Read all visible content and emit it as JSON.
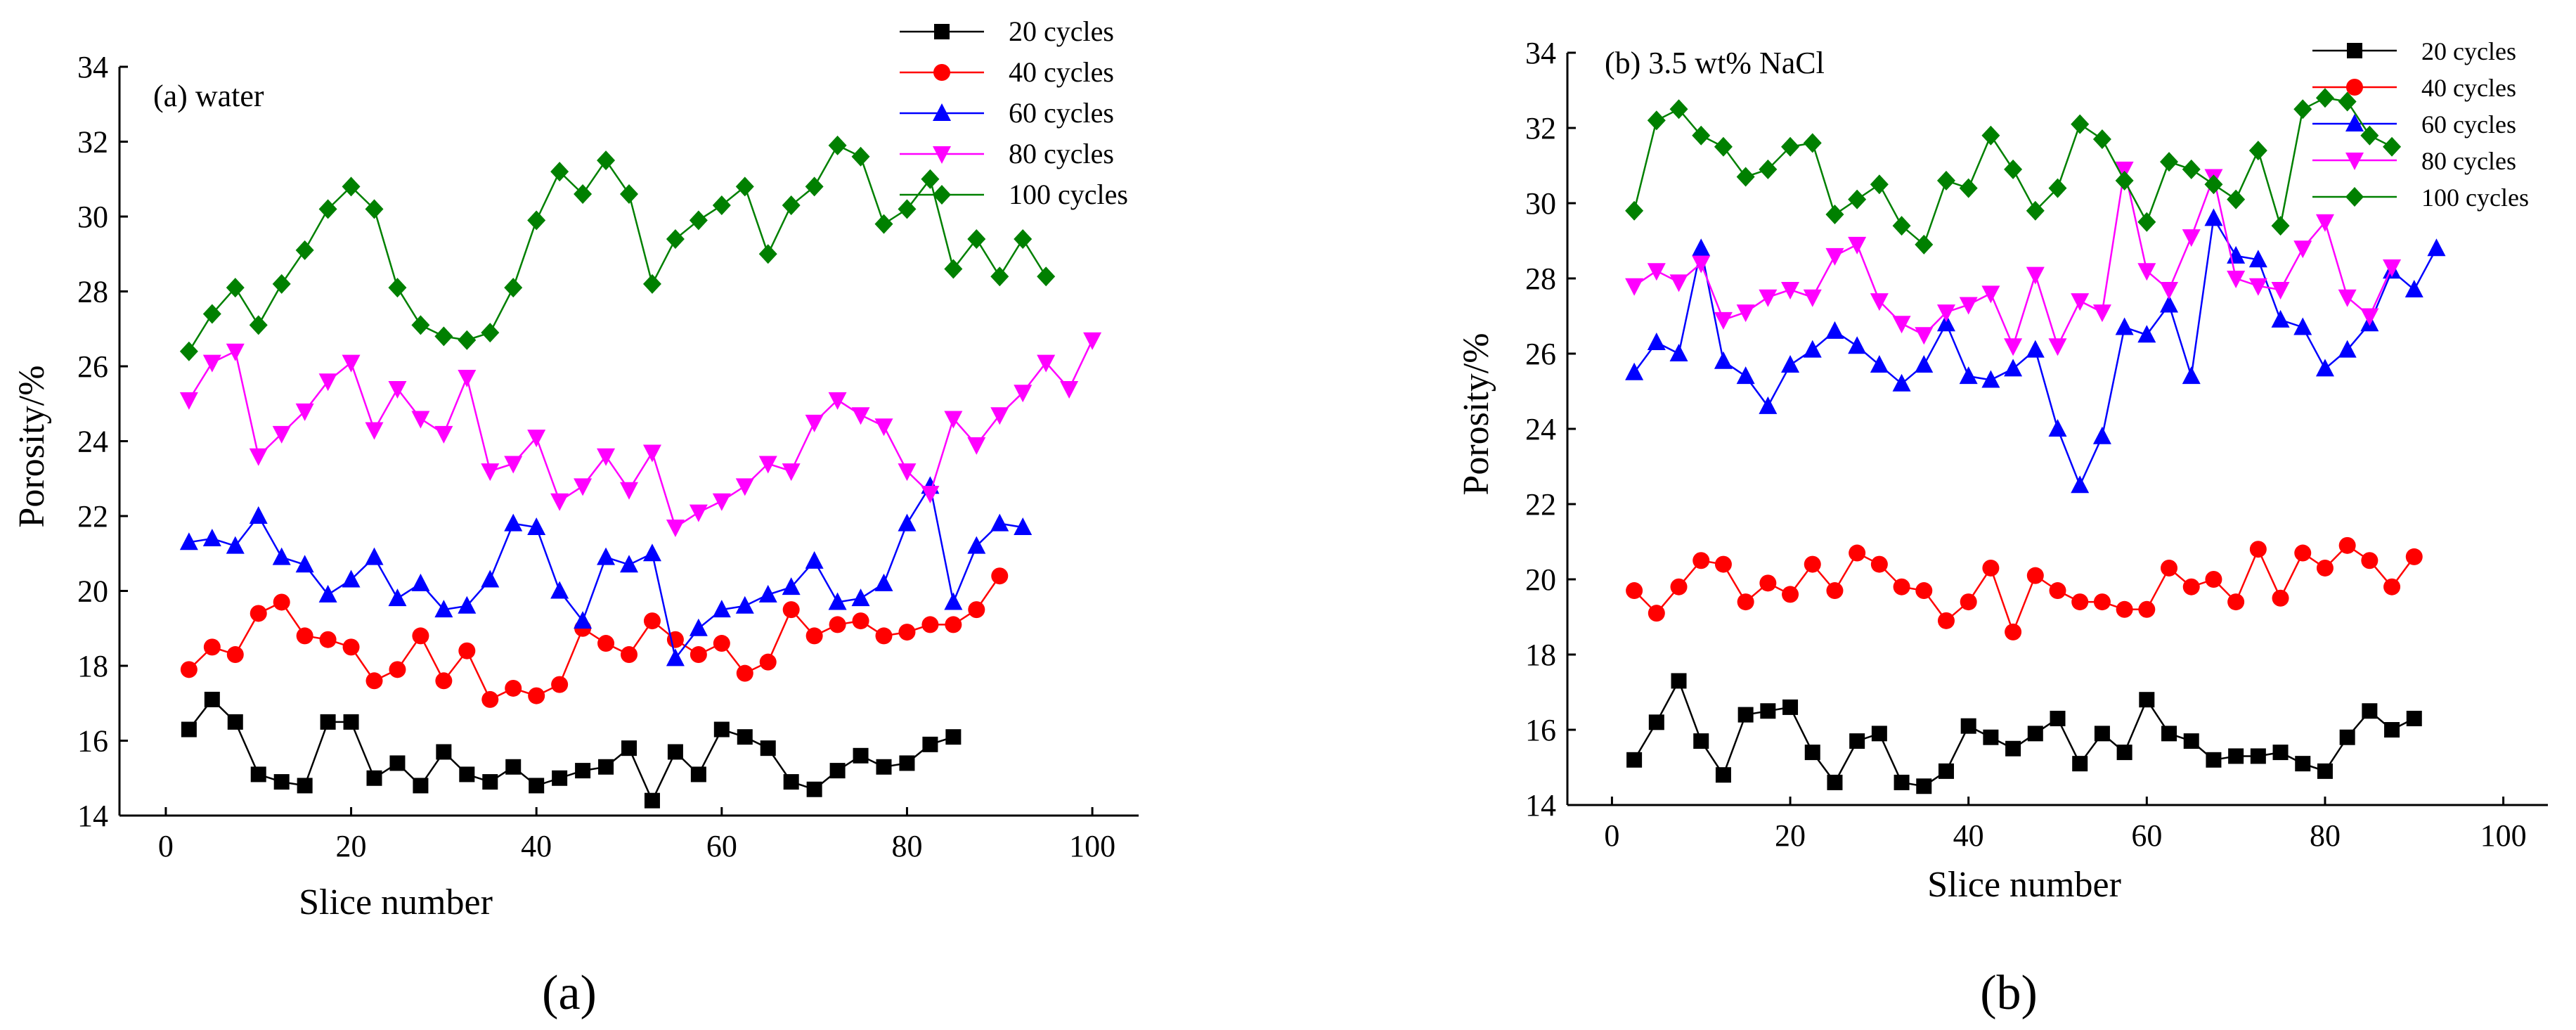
{
  "chart_data": [
    {
      "type": "line",
      "panel_label": "(a) water",
      "caption": "(a)",
      "xlabel": "Slice number",
      "ylabel": "Porosity/%",
      "xlim": [
        -5,
        105
      ],
      "ylim": [
        14,
        34
      ],
      "xticks": [
        "0",
        "20",
        "40",
        "60",
        "80",
        "100"
      ],
      "yticks": [
        "14",
        "16",
        "18",
        "20",
        "22",
        "24",
        "26",
        "28",
        "30",
        "32",
        "34"
      ],
      "legend_position": "top-right",
      "series": [
        {
          "name": "20 cycles",
          "color": "#000000",
          "marker": "square",
          "x": [
            2.5,
            5,
            7.5,
            10,
            12.5,
            15,
            17.5,
            20,
            22.5,
            25,
            27.5,
            30,
            32.5,
            35,
            37.5,
            40,
            42.5,
            45,
            47.5,
            50,
            52.5,
            55,
            57.5,
            60,
            62.5,
            65,
            67.5,
            70,
            72.5,
            75,
            77.5,
            80,
            82.5,
            85
          ],
          "values": [
            16.3,
            17.1,
            16.5,
            15.1,
            14.9,
            14.8,
            16.5,
            16.5,
            15.0,
            15.4,
            14.8,
            15.7,
            15.1,
            14.9,
            15.3,
            14.8,
            15.0,
            15.2,
            15.3,
            15.8,
            14.4,
            15.7,
            15.1,
            16.3,
            16.1,
            15.8,
            14.9,
            14.7,
            15.2,
            15.6,
            15.3,
            15.4,
            15.9,
            16.1
          ]
        },
        {
          "name": "40 cycles",
          "color": "#ff0000",
          "marker": "circle",
          "x": [
            2.5,
            5,
            7.5,
            10,
            12.5,
            15,
            17.5,
            20,
            22.5,
            25,
            27.5,
            30,
            32.5,
            35,
            37.5,
            40,
            42.5,
            45,
            47.5,
            50,
            52.5,
            55,
            57.5,
            60,
            62.5,
            65,
            67.5,
            70,
            72.5,
            75,
            77.5,
            80,
            82.5,
            85,
            87.5,
            90
          ],
          "values": [
            17.9,
            18.5,
            18.3,
            19.4,
            19.7,
            18.8,
            18.7,
            18.5,
            17.6,
            17.9,
            18.8,
            17.6,
            18.4,
            17.1,
            17.4,
            17.2,
            17.5,
            19.0,
            18.6,
            18.3,
            19.2,
            18.7,
            18.3,
            18.6,
            17.8,
            18.1,
            19.5,
            18.8,
            19.1,
            19.2,
            18.8,
            18.9,
            19.1,
            19.1,
            19.5,
            20.4
          ]
        },
        {
          "name": "60 cycles",
          "color": "#0000ff",
          "marker": "triangle-up",
          "x": [
            2.5,
            5,
            7.5,
            10,
            12.5,
            15,
            17.5,
            20,
            22.5,
            25,
            27.5,
            30,
            32.5,
            35,
            37.5,
            40,
            42.5,
            45,
            47.5,
            50,
            52.5,
            55,
            57.5,
            60,
            62.5,
            65,
            67.5,
            70,
            72.5,
            75,
            77.5,
            80,
            82.5,
            85,
            87.5,
            90,
            92.5
          ],
          "values": [
            21.3,
            21.4,
            21.2,
            22.0,
            20.9,
            20.7,
            19.9,
            20.3,
            20.9,
            19.8,
            20.2,
            19.5,
            19.6,
            20.3,
            21.8,
            21.7,
            20.0,
            19.2,
            20.9,
            20.7,
            21.0,
            18.2,
            19.0,
            19.5,
            19.6,
            19.9,
            20.1,
            20.8,
            19.7,
            19.8,
            20.2,
            21.8,
            22.8,
            19.7,
            21.2,
            21.8,
            21.7
          ]
        },
        {
          "name": "80 cycles",
          "color": "#ff00ff",
          "marker": "triangle-down",
          "x": [
            2.5,
            5,
            7.5,
            10,
            12.5,
            15,
            17.5,
            20,
            22.5,
            25,
            27.5,
            30,
            32.5,
            35,
            37.5,
            40,
            42.5,
            45,
            47.5,
            50,
            52.5,
            55,
            57.5,
            60,
            62.5,
            65,
            67.5,
            70,
            72.5,
            75,
            77.5,
            80,
            82.5,
            85,
            87.5,
            90,
            92.5,
            95,
            97.5,
            100
          ],
          "values": [
            25.1,
            26.1,
            26.4,
            23.6,
            24.2,
            24.8,
            25.6,
            26.1,
            24.3,
            25.4,
            24.6,
            24.2,
            25.7,
            23.2,
            23.4,
            24.1,
            22.4,
            22.8,
            23.6,
            22.7,
            23.7,
            21.7,
            22.1,
            22.4,
            22.8,
            23.4,
            23.2,
            24.5,
            25.1,
            24.7,
            24.4,
            23.2,
            22.6,
            24.6,
            23.9,
            24.7,
            25.3,
            26.1,
            25.4,
            26.7
          ]
        },
        {
          "name": "100 cycles",
          "color": "#008000",
          "marker": "diamond",
          "x": [
            2.5,
            5,
            7.5,
            10,
            12.5,
            15,
            17.5,
            20,
            22.5,
            25,
            27.5,
            30,
            32.5,
            35,
            37.5,
            40,
            42.5,
            45,
            47.5,
            50,
            52.5,
            55,
            57.5,
            60,
            62.5,
            65,
            67.5,
            70,
            72.5,
            75,
            77.5,
            80,
            82.5,
            85,
            87.5,
            90,
            92.5,
            95
          ],
          "values": [
            26.4,
            27.4,
            28.1,
            27.1,
            28.2,
            29.1,
            30.2,
            30.8,
            30.2,
            28.1,
            27.1,
            26.8,
            26.7,
            26.9,
            28.1,
            29.9,
            31.2,
            30.6,
            31.5,
            30.6,
            28.2,
            29.4,
            29.9,
            30.3,
            30.8,
            29.0,
            30.3,
            30.8,
            31.9,
            31.6,
            29.8,
            30.2,
            31.0,
            28.6,
            29.4,
            28.4,
            29.4,
            28.4
          ]
        }
      ]
    },
    {
      "type": "line",
      "panel_label": "(b) 3.5 wt% NaCl",
      "caption": "(b)",
      "xlabel": "Slice number",
      "ylabel": "Porosity/%",
      "xlim": [
        -5,
        105
      ],
      "ylim": [
        14,
        34
      ],
      "xticks": [
        "0",
        "20",
        "40",
        "60",
        "80",
        "100"
      ],
      "yticks": [
        "14",
        "16",
        "18",
        "20",
        "22",
        "24",
        "26",
        "28",
        "30",
        "32",
        "34"
      ],
      "legend_position": "top-right",
      "series": [
        {
          "name": "20 cycles",
          "color": "#000000",
          "marker": "square",
          "x": [
            2.5,
            5,
            7.5,
            10,
            12.5,
            15,
            17.5,
            20,
            22.5,
            25,
            27.5,
            30,
            32.5,
            35,
            37.5,
            40,
            42.5,
            45,
            47.5,
            50,
            52.5,
            55,
            57.5,
            60,
            62.5,
            65,
            67.5,
            70,
            72.5,
            75,
            77.5,
            80,
            82.5,
            85,
            87.5,
            90
          ],
          "values": [
            15.2,
            16.2,
            17.3,
            15.7,
            14.8,
            16.4,
            16.5,
            16.6,
            15.4,
            14.6,
            15.7,
            15.9,
            14.6,
            14.5,
            14.9,
            16.1,
            15.8,
            15.5,
            15.9,
            16.3,
            15.1,
            15.9,
            15.4,
            16.8,
            15.9,
            15.7,
            15.2,
            15.3,
            15.3,
            15.4,
            15.1,
            14.9,
            15.8,
            16.5,
            16.0,
            16.3
          ]
        },
        {
          "name": "40 cycles",
          "color": "#ff0000",
          "marker": "circle",
          "x": [
            2.5,
            5,
            7.5,
            10,
            12.5,
            15,
            17.5,
            20,
            22.5,
            25,
            27.5,
            30,
            32.5,
            35,
            37.5,
            40,
            42.5,
            45,
            47.5,
            50,
            52.5,
            55,
            57.5,
            60,
            62.5,
            65,
            67.5,
            70,
            72.5,
            75,
            77.5,
            80,
            82.5,
            85,
            87.5,
            90
          ],
          "values": [
            19.7,
            19.1,
            19.8,
            20.5,
            20.4,
            19.4,
            19.9,
            19.6,
            20.4,
            19.7,
            20.7,
            20.4,
            19.8,
            19.7,
            18.9,
            19.4,
            20.3,
            18.6,
            20.1,
            19.7,
            19.4,
            19.4,
            19.2,
            19.2,
            20.3,
            19.8,
            20.0,
            19.4,
            20.8,
            19.5,
            20.7,
            20.3,
            20.9,
            20.5,
            19.8,
            20.6
          ]
        },
        {
          "name": "60 cycles",
          "color": "#0000ff",
          "marker": "triangle-up",
          "x": [
            2.5,
            5,
            7.5,
            10,
            12.5,
            15,
            17.5,
            20,
            22.5,
            25,
            27.5,
            30,
            32.5,
            35,
            37.5,
            40,
            42.5,
            45,
            47.5,
            50,
            52.5,
            55,
            57.5,
            60,
            62.5,
            65,
            67.5,
            70,
            72.5,
            75,
            77.5,
            80,
            82.5,
            85,
            87.5,
            90,
            92.5
          ],
          "values": [
            25.5,
            26.3,
            26.0,
            28.8,
            25.8,
            25.4,
            24.6,
            25.7,
            26.1,
            26.6,
            26.2,
            25.7,
            25.2,
            25.7,
            26.8,
            25.4,
            25.3,
            25.6,
            26.1,
            24.0,
            22.5,
            23.8,
            26.7,
            26.5,
            27.3,
            25.4,
            29.6,
            28.6,
            28.5,
            26.9,
            26.7,
            25.6,
            26.1,
            26.8,
            28.2,
            27.7,
            28.8
          ]
        },
        {
          "name": "80 cycles",
          "color": "#ff00ff",
          "marker": "triangle-down",
          "x": [
            2.5,
            5,
            7.5,
            10,
            12.5,
            15,
            17.5,
            20,
            22.5,
            25,
            27.5,
            30,
            32.5,
            35,
            37.5,
            40,
            42.5,
            45,
            47.5,
            50,
            52.5,
            55,
            57.5,
            60,
            62.5,
            65,
            67.5,
            70,
            72.5,
            75,
            77.5,
            80,
            82.5,
            85,
            87.5
          ],
          "values": [
            27.8,
            28.2,
            27.9,
            28.4,
            26.9,
            27.1,
            27.5,
            27.7,
            27.5,
            28.6,
            28.9,
            27.4,
            26.8,
            26.5,
            27.1,
            27.3,
            27.6,
            26.2,
            28.1,
            26.2,
            27.4,
            27.1,
            30.9,
            28.2,
            27.7,
            29.1,
            30.7,
            28.0,
            27.8,
            27.7,
            28.8,
            29.5,
            27.5,
            27.0,
            28.3
          ]
        },
        {
          "name": "100 cycles",
          "color": "#008000",
          "marker": "diamond",
          "x": [
            2.5,
            5,
            7.5,
            10,
            12.5,
            15,
            17.5,
            20,
            22.5,
            25,
            27.5,
            30,
            32.5,
            35,
            37.5,
            40,
            42.5,
            45,
            47.5,
            50,
            52.5,
            55,
            57.5,
            60,
            62.5,
            65,
            67.5,
            70,
            72.5,
            75,
            77.5,
            80,
            82.5,
            85,
            87.5
          ],
          "values": [
            29.8,
            32.2,
            32.5,
            31.8,
            31.5,
            30.7,
            30.9,
            31.5,
            31.6,
            29.7,
            30.1,
            30.5,
            29.4,
            28.9,
            30.6,
            30.4,
            31.8,
            30.9,
            29.8,
            30.4,
            32.1,
            31.7,
            30.6,
            29.5,
            31.1,
            30.9,
            30.5,
            30.1,
            31.4,
            29.4,
            32.5,
            32.8,
            32.7,
            31.8,
            31.5
          ]
        }
      ]
    }
  ]
}
